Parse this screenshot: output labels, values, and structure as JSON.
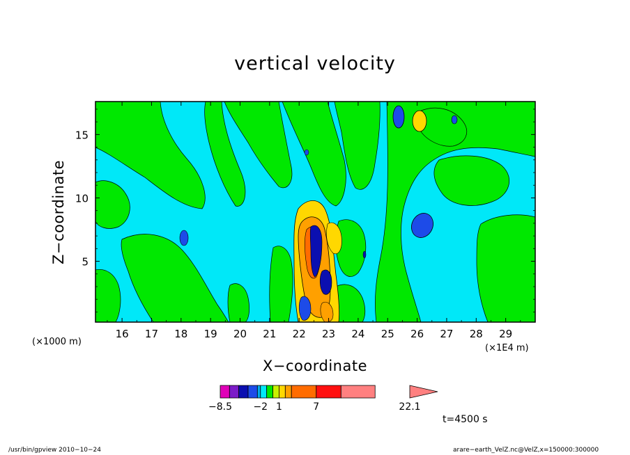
{
  "chart_data": {
    "type": "heatmap",
    "title": "vertical velocity",
    "xlabel": "X−coordinate",
    "ylabel": "Z−coordinate",
    "x_unit_label": "(×1000 m)",
    "y_unit_label": "(×1E4 m)",
    "x_ticks": [
      "16",
      "17",
      "18",
      "19",
      "20",
      "21",
      "22",
      "23",
      "24",
      "25",
      "26",
      "27",
      "28",
      "29"
    ],
    "y_ticks": [
      "5",
      "10",
      "15"
    ],
    "xlim": [
      15.1,
      30.0
    ],
    "ylim": [
      0.2,
      17.6
    ],
    "colorbar": {
      "levels": [
        -8.5,
        -7,
        -5.5,
        -4,
        -2.5,
        -2,
        -1,
        0,
        1,
        2,
        3,
        7,
        11,
        16.5,
        22.1
      ],
      "tick_labels": [
        "−8.5",
        "−2",
        "1",
        "7",
        "22.1"
      ],
      "colors": [
        "#e000b8",
        "#7c1bc8",
        "#0b0fb0",
        "#1d4be8",
        "#00aef0",
        "#00e8f8",
        "#00e800",
        "#c8f000",
        "#ffd800",
        "#ffa000",
        "#ff6c00",
        "#ff1010",
        "#ff8080"
      ],
      "extend": "max"
    },
    "time_label": "t=4500 s",
    "features": [
      {
        "kind": "max",
        "x": 22.4,
        "z": 6.2,
        "value": 16
      },
      {
        "kind": "min",
        "x": 22.6,
        "z": 7.8,
        "value": -6
      },
      {
        "kind": "min",
        "x": 26.1,
        "z": 7.5,
        "value": -3
      },
      {
        "kind": "min",
        "x": 25.4,
        "z": 16.2,
        "value": -3
      },
      {
        "kind": "max",
        "x": 26.0,
        "z": 15.9,
        "value": 3
      },
      {
        "kind": "min",
        "x": 18.1,
        "z": 6.5,
        "value": -3
      }
    ]
  },
  "footer": {
    "left": "/usr/bin/gpview   2010−10−24",
    "right": "arare−earth_VelZ.nc@VelZ,x=150000:300000"
  }
}
